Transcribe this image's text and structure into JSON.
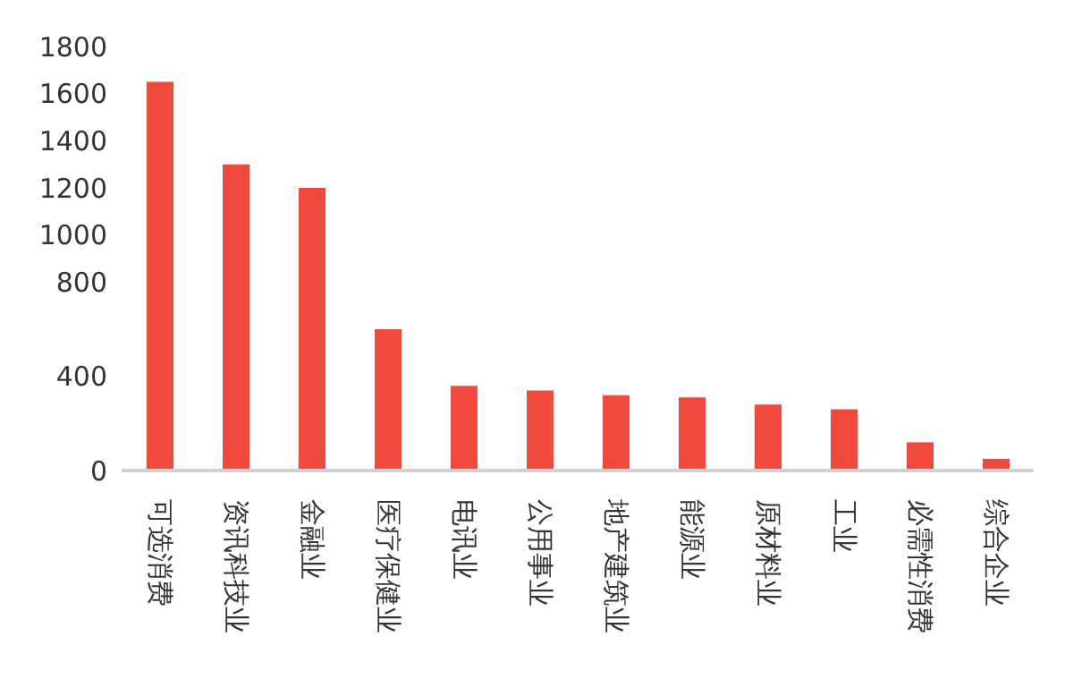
{
  "chart_data": {
    "type": "bar",
    "categories": [
      "可选消费",
      "资讯科技业",
      "金融业",
      "医疗保健业",
      "电讯业",
      "公用事业",
      "地产建筑业",
      "能源业",
      "原材料业",
      "工业",
      "必需性消费",
      "综合企业"
    ],
    "values": [
      1650,
      1300,
      1200,
      600,
      360,
      340,
      320,
      310,
      280,
      260,
      120,
      50
    ],
    "color": "#f0493d",
    "ylim": [
      0,
      1800
    ],
    "yticks": [
      0,
      400,
      800,
      1000,
      1200,
      1400,
      1600,
      1800
    ],
    "grid": false,
    "legend": false
  }
}
